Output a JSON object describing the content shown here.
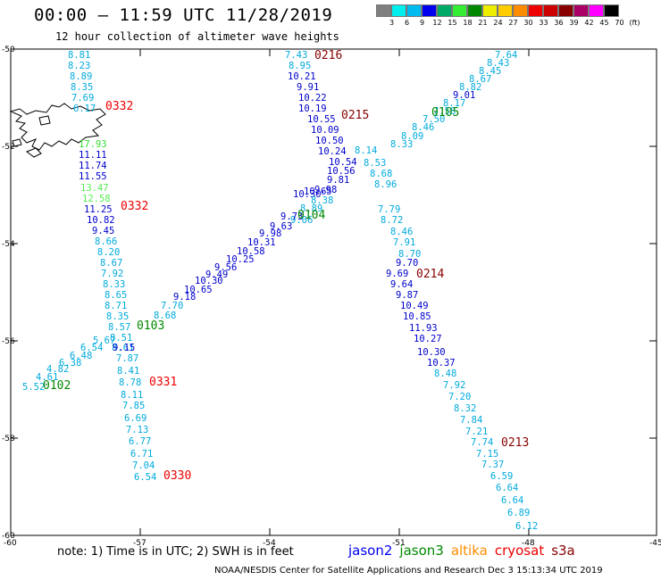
{
  "title": "00:00 – 11:59 UTC 11/28/2019",
  "subtitle": "12 hour collection of altimeter wave heights",
  "note": "note: 1) Time is in UTC; 2) SWH is in feet",
  "credit": "NOAA/NESDIS Center for Satellite Applications and Research   Dec  3 15:13:34 UTC 2019",
  "satellites": [
    {
      "name": "jason2",
      "color": "#0000ee"
    },
    {
      "name": "jason3",
      "color": "#008800"
    },
    {
      "name": "altika",
      "color": "#ff8c00"
    },
    {
      "name": "cryosat",
      "color": "#ee0000"
    },
    {
      "name": "s3a",
      "color": "#880000"
    }
  ],
  "colorbar": {
    "colors": [
      "#808080",
      "#00eeee",
      "#00bbee",
      "#0000ee",
      "#00aa66",
      "#33ee33",
      "#008800",
      "#eeee00",
      "#ffcc00",
      "#ff8c00",
      "#ee0000",
      "#cc0000",
      "#880000",
      "#aa0066",
      "#ff00ff",
      "#000000"
    ],
    "labels": [
      "3",
      "6",
      "9",
      "12",
      "15",
      "18",
      "21",
      "24",
      "27",
      "30",
      "33",
      "36",
      "39",
      "42",
      "45",
      "70",
      "(ft)"
    ]
  },
  "axes": {
    "lat_labels": [
      "-50",
      "-52",
      "-54",
      "-56",
      "-58",
      "-60"
    ],
    "lon_labels": [
      "-60",
      "-57",
      "-54",
      "-51",
      "-48",
      "-45"
    ]
  },
  "tracks": [
    {
      "id": "t1",
      "color": "#00aadd",
      "labels": [
        "8.81",
        "8.23",
        "8.89",
        "8.35",
        "7.69",
        "6.17"
      ]
    },
    {
      "id": "t2",
      "color": "#00aadd",
      "labels": [
        "7.43",
        "8.95"
      ]
    },
    {
      "id": "t3",
      "color": "#00aadd",
      "labels": [
        "7.64",
        "8.43",
        "8.45",
        "8.67",
        "8.82"
      ]
    },
    {
      "id": "t4",
      "color": "#0000cc",
      "labels": [
        "9.01"
      ]
    },
    {
      "id": "t5",
      "color": "#00aadd",
      "labels": [
        "8.17",
        "7.58",
        "7.50",
        "8.46",
        "8.09",
        "8.33"
      ]
    },
    {
      "id": "t6",
      "color": "#0000cc",
      "labels": [
        "10.21",
        "9.91",
        "10.22",
        "10.19",
        "10.55",
        "10.09",
        "10.50",
        "10.24",
        "10.54",
        "10.56",
        "9.81",
        "9.98",
        "10.65",
        "10.30"
      ]
    },
    {
      "id": "t7",
      "color": "#33dd33",
      "labels": [
        "17.93"
      ]
    },
    {
      "id": "t8",
      "color": "#0000cc",
      "labels": [
        "11.11",
        "11.74",
        "11.55"
      ]
    },
    {
      "id": "t9",
      "color": "#55ee55",
      "labels": [
        "13.47",
        "12.58"
      ]
    },
    {
      "id": "t10",
      "color": "#0000cc",
      "labels": [
        "11.25",
        "10.82",
        "9.45"
      ]
    },
    {
      "id": "t11",
      "color": "#00aadd",
      "labels": [
        "8.66",
        "8.20",
        "8.67",
        "7.92",
        "8.33",
        "8.65",
        "8.71",
        "8.35",
        "8.57",
        "8.51",
        "8.61"
      ]
    },
    {
      "id": "t12",
      "color": "#00aadd",
      "labels": [
        "8.14",
        "8.53",
        "8.68",
        "8.96",
        "8.38",
        "8.89",
        "9.06"
      ]
    },
    {
      "id": "t13",
      "color": "#0000cc",
      "labels": [
        "9.73",
        "9.63",
        "9.98",
        "10.31",
        "10.58",
        "10.25",
        "9.56",
        "9.49",
        "10.30",
        "10.65",
        "9.18"
      ]
    },
    {
      "id": "t14",
      "color": "#00aadd",
      "labels": [
        "7.70",
        "8.68",
        "5.67",
        "6.54",
        "6.48",
        "6.38",
        "4.82",
        "4.61",
        "5.52"
      ]
    },
    {
      "id": "t15",
      "color": "#0000cc",
      "labels": [
        "9.15"
      ]
    },
    {
      "id": "t16",
      "color": "#00aadd",
      "labels": [
        "7.87",
        "8.41",
        "8.78",
        "8.11",
        "7.85",
        "6.69",
        "7.13",
        "6.77",
        "6.71",
        "7.04",
        "6.54"
      ]
    },
    {
      "id": "t17",
      "color": "#00aadd",
      "labels": [
        "7.79",
        "8.72",
        "8.46",
        "7.91",
        "8.70"
      ]
    },
    {
      "id": "t18",
      "color": "#0000cc",
      "labels": [
        "9.70",
        "9.69",
        "9.64",
        "9.87",
        "10.49",
        "10.85",
        "11.93",
        "10.27",
        "10.30",
        "10.37"
      ]
    },
    {
      "id": "t19",
      "color": "#00aadd",
      "labels": [
        "8.48",
        "7.92",
        "7.20",
        "8.32",
        "7.84",
        "7.21",
        "7.74",
        "7.15",
        "7.37",
        "6.59",
        "6.64",
        "6.64",
        "6.89",
        "6.12"
      ]
    }
  ],
  "times": [
    {
      "label": "0216",
      "color": "#880000"
    },
    {
      "label": "0332",
      "color": "#ee0000"
    },
    {
      "label": "0215",
      "color": "#880000"
    },
    {
      "label": "0105",
      "color": "#008800"
    },
    {
      "label": "0332",
      "color": "#ee0000"
    },
    {
      "label": "0104",
      "color": "#008800"
    },
    {
      "label": "0214",
      "color": "#880000"
    },
    {
      "label": "0103",
      "color": "#008800"
    },
    {
      "label": "0102",
      "color": "#008800"
    },
    {
      "label": "0331",
      "color": "#ee0000"
    },
    {
      "label": "0213",
      "color": "#880000"
    },
    {
      "label": "0330",
      "color": "#ee0000"
    }
  ]
}
